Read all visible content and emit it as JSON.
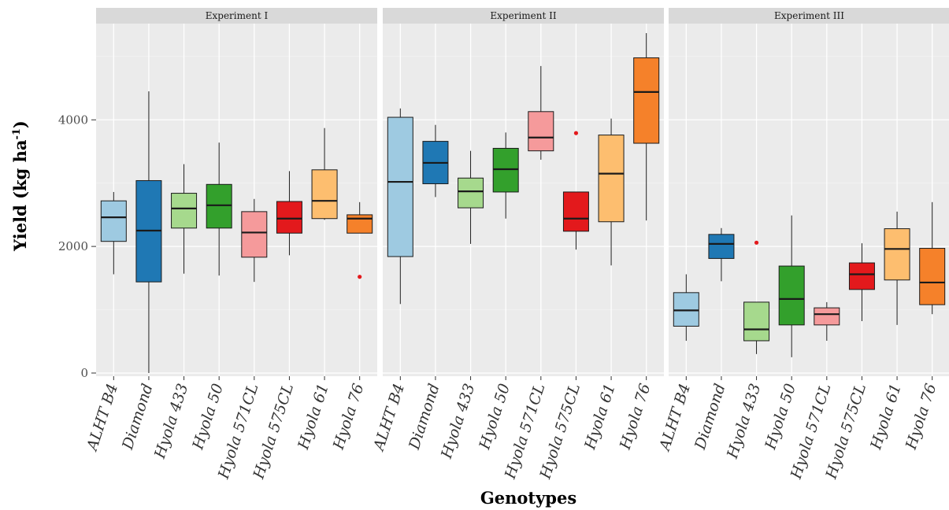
{
  "chart_data": {
    "type": "boxplot",
    "xlabel": "Genotypes",
    "ylabel": {
      "main": "Yield (kg ha",
      "superscript": "-1",
      "suffix": ")"
    },
    "ylim": [
      -50,
      5520
    ],
    "yticks": [
      0,
      2000,
      4000
    ],
    "grid": true,
    "legend": "none",
    "categories": [
      "ALHT B4",
      "Diamond",
      "Hyola 433",
      "Hyola 50",
      "Hyola 571CL",
      "Hyola 575CL",
      "Hyola 61",
      "Hyola 76"
    ],
    "colors": [
      "#9ecae1",
      "#1f78b4",
      "#a6d98d",
      "#33a02c",
      "#f59a9b",
      "#e3191c",
      "#fdbe6f",
      "#f5812a"
    ],
    "outlier_color": "#e3191c",
    "panels": [
      {
        "title": "Experiment I",
        "boxes": [
          {
            "min": 1560,
            "q1": 2080,
            "median": 2460,
            "q3": 2720,
            "max": 2860,
            "outliers": []
          },
          {
            "min": 0,
            "q1": 1440,
            "median": 2250,
            "q3": 3040,
            "max": 4450,
            "outliers": []
          },
          {
            "min": 1570,
            "q1": 2290,
            "median": 2600,
            "q3": 2840,
            "max": 3300,
            "outliers": []
          },
          {
            "min": 1540,
            "q1": 2290,
            "median": 2650,
            "q3": 2980,
            "max": 3640,
            "outliers": []
          },
          {
            "min": 1440,
            "q1": 1830,
            "median": 2220,
            "q3": 2550,
            "max": 2750,
            "outliers": []
          },
          {
            "min": 1860,
            "q1": 2210,
            "median": 2440,
            "q3": 2710,
            "max": 3190,
            "outliers": []
          },
          {
            "min": 2420,
            "q1": 2440,
            "median": 2720,
            "q3": 3210,
            "max": 3870,
            "outliers": []
          },
          {
            "min": 2210,
            "q1": 2210,
            "median": 2440,
            "q3": 2500,
            "max": 2700,
            "outliers": [
              1520
            ]
          }
        ]
      },
      {
        "title": "Experiment II",
        "boxes": [
          {
            "min": 1090,
            "q1": 1840,
            "median": 3020,
            "q3": 4040,
            "max": 4180,
            "outliers": []
          },
          {
            "min": 2780,
            "q1": 2990,
            "median": 3320,
            "q3": 3660,
            "max": 3920,
            "outliers": []
          },
          {
            "min": 2040,
            "q1": 2610,
            "median": 2870,
            "q3": 3080,
            "max": 3510,
            "outliers": []
          },
          {
            "min": 2440,
            "q1": 2860,
            "median": 3220,
            "q3": 3550,
            "max": 3800,
            "outliers": []
          },
          {
            "min": 3370,
            "q1": 3510,
            "median": 3720,
            "q3": 4130,
            "max": 4850,
            "outliers": []
          },
          {
            "min": 1950,
            "q1": 2240,
            "median": 2440,
            "q3": 2860,
            "max": 2860,
            "outliers": [
              3790
            ]
          },
          {
            "min": 1700,
            "q1": 2390,
            "median": 3150,
            "q3": 3760,
            "max": 4020,
            "outliers": []
          },
          {
            "min": 2410,
            "q1": 3630,
            "median": 4440,
            "q3": 4980,
            "max": 5370,
            "outliers": []
          }
        ]
      },
      {
        "title": "Experiment III",
        "boxes": [
          {
            "min": 510,
            "q1": 740,
            "median": 990,
            "q3": 1270,
            "max": 1560,
            "outliers": []
          },
          {
            "min": 1450,
            "q1": 1810,
            "median": 2040,
            "q3": 2190,
            "max": 2290,
            "outliers": []
          },
          {
            "min": 300,
            "q1": 510,
            "median": 690,
            "q3": 1120,
            "max": 1120,
            "outliers": [
              2060
            ]
          },
          {
            "min": 250,
            "q1": 760,
            "median": 1170,
            "q3": 1690,
            "max": 2490,
            "outliers": []
          },
          {
            "min": 510,
            "q1": 760,
            "median": 930,
            "q3": 1030,
            "max": 1120,
            "outliers": []
          },
          {
            "min": 820,
            "q1": 1320,
            "median": 1560,
            "q3": 1740,
            "max": 2050,
            "outliers": []
          },
          {
            "min": 760,
            "q1": 1470,
            "median": 1960,
            "q3": 2280,
            "max": 2550,
            "outliers": []
          },
          {
            "min": 930,
            "q1": 1080,
            "median": 1430,
            "q3": 1970,
            "max": 2700,
            "outliers": []
          }
        ]
      }
    ]
  }
}
